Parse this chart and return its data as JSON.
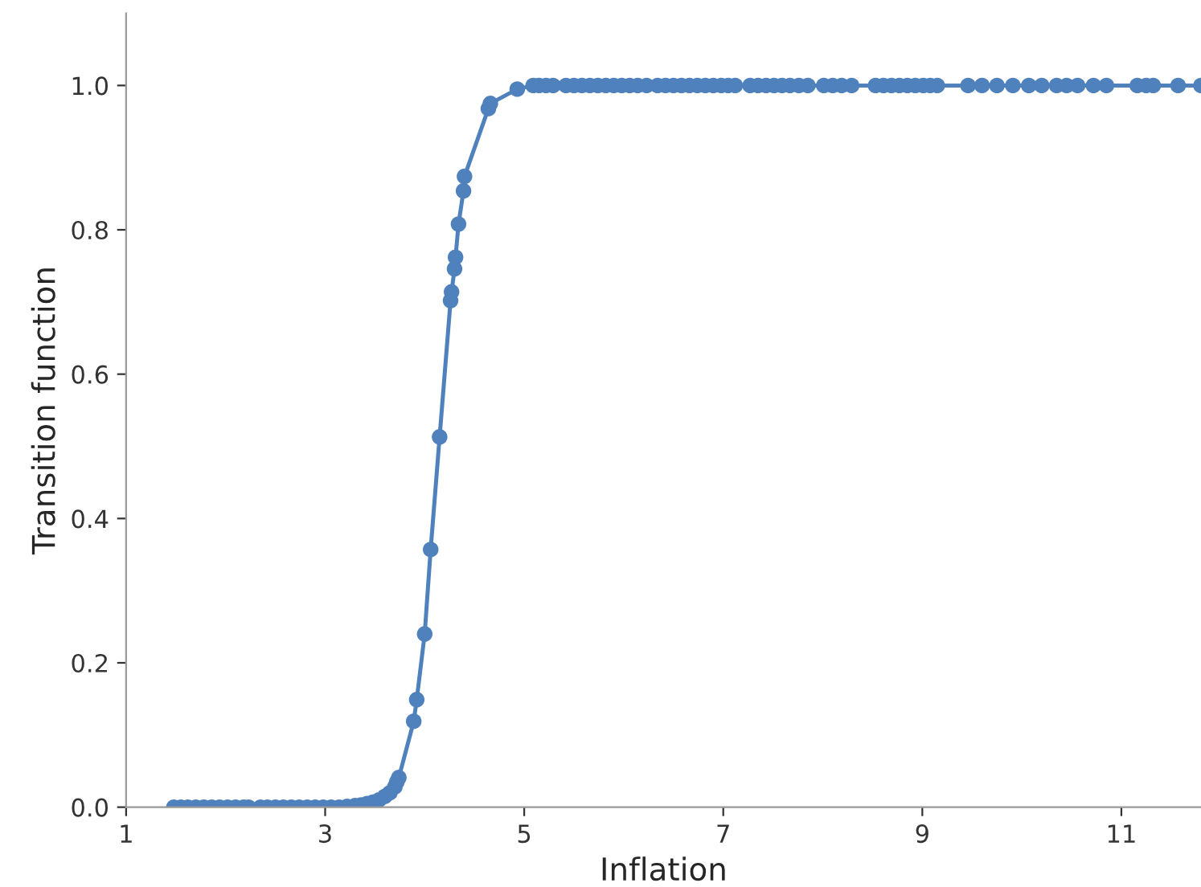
{
  "chart_data": {
    "type": "line",
    "xlabel": "Inflation",
    "ylabel": "Transition function",
    "xlim": [
      1,
      11.8
    ],
    "ylim": [
      0,
      1.1
    ],
    "xticks": [
      1,
      3,
      5,
      7,
      9,
      11
    ],
    "yticks": [
      {
        "value": 0,
        "label": "0.0"
      },
      {
        "value": 0.2,
        "label": "0.2"
      },
      {
        "value": 0.4,
        "label": "0.4"
      },
      {
        "value": 0.6,
        "label": "0.6"
      },
      {
        "value": 0.8,
        "label": "0.8"
      },
      {
        "value": 1,
        "label": "1.0"
      }
    ],
    "grid": false,
    "legend": false,
    "marker": "circle",
    "line_style": "solid",
    "series": [
      {
        "color": "#4f81bd",
        "x": [
          1.48,
          1.55,
          1.62,
          1.7,
          1.78,
          1.86,
          1.94,
          2.02,
          2.1,
          2.18,
          2.23,
          2.35,
          2.42,
          2.5,
          2.58,
          2.66,
          2.74,
          2.82,
          2.9,
          2.98,
          3.06,
          3.14,
          3.22,
          3.3,
          3.36,
          3.42,
          3.48,
          3.54,
          3.6,
          3.65,
          3.7,
          3.72,
          3.74,
          3.89,
          3.92,
          4.0,
          4.06,
          4.15,
          4.26,
          4.27,
          4.3,
          4.31,
          4.34,
          4.39,
          4.4,
          4.64,
          4.66,
          4.93,
          5.09,
          5.15,
          5.22,
          5.29,
          5.42,
          5.5,
          5.58,
          5.66,
          5.74,
          5.82,
          5.9,
          5.98,
          6.06,
          6.14,
          6.23,
          6.34,
          6.42,
          6.5,
          6.58,
          6.66,
          6.74,
          6.82,
          6.9,
          6.98,
          7.05,
          7.12,
          7.27,
          7.35,
          7.43,
          7.51,
          7.59,
          7.67,
          7.76,
          7.85,
          8.01,
          8.1,
          8.19,
          8.29,
          8.53,
          8.61,
          8.69,
          8.77,
          8.85,
          8.93,
          9.01,
          9.08,
          9.15,
          9.46,
          9.6,
          9.75,
          9.91,
          10.07,
          10.2,
          10.35,
          10.45,
          10.56,
          10.72,
          10.85,
          11.16,
          11.25,
          11.32,
          11.57,
          11.8
        ],
        "values": [
          0,
          0,
          0,
          0,
          0,
          0,
          0,
          0,
          0,
          0,
          0,
          0,
          0,
          0,
          0,
          0,
          0,
          0,
          0,
          0,
          0,
          0,
          0.001,
          0.002,
          0.003,
          0.005,
          0.007,
          0.01,
          0.015,
          0.02,
          0.028,
          0.035,
          0.041,
          0.119,
          0.149,
          0.24,
          0.357,
          0.513,
          0.702,
          0.714,
          0.746,
          0.762,
          0.808,
          0.854,
          0.874,
          0.968,
          0.975,
          0.995,
          1,
          1,
          1,
          1,
          1,
          1,
          1,
          1,
          1,
          1,
          1,
          1,
          1,
          1,
          1,
          1,
          1,
          1,
          1,
          1,
          1,
          1,
          1,
          1,
          1,
          1,
          1,
          1,
          1,
          1,
          1,
          1,
          1,
          1,
          1,
          1,
          1,
          1,
          1,
          1,
          1,
          1,
          1,
          1,
          1,
          1,
          1,
          1,
          1,
          1,
          1,
          1,
          1,
          1,
          1,
          1,
          1,
          1,
          1,
          1,
          1,
          1,
          1
        ]
      }
    ]
  }
}
